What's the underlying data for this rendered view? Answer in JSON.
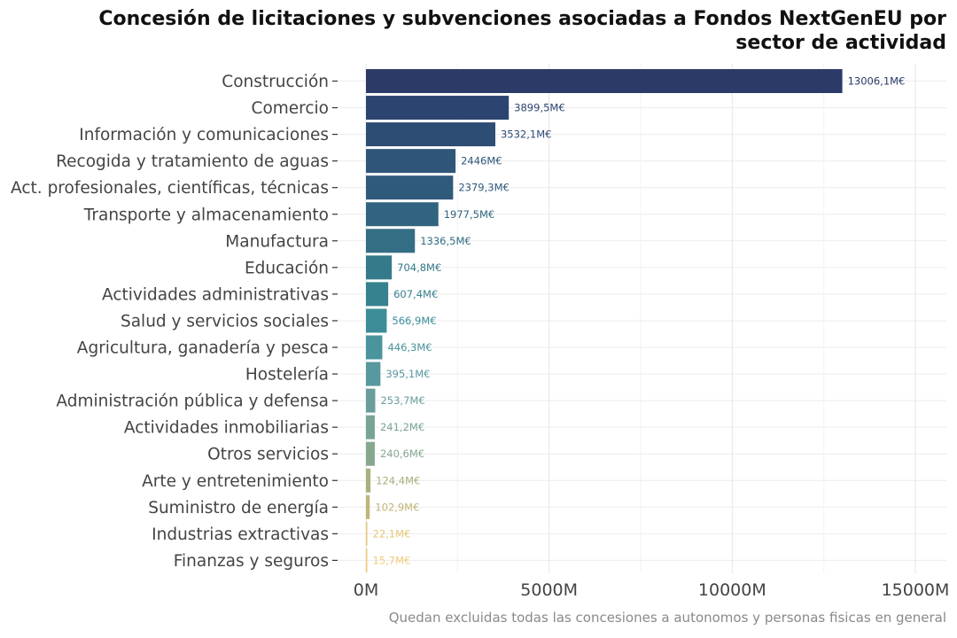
{
  "chart_data": {
    "type": "bar",
    "orientation": "horizontal",
    "title": "Concesión de licitaciones y subvenciones asociadas a Fondos NextGenEU por sector de actividad",
    "title_lines": [
      "Concesión de licitaciones y subvenciones asociadas a Fondos NextGenEU por",
      "sector de actividad"
    ],
    "caption": "Quedan excluidas todas las concesiones a autonomos y personas fisicas en general",
    "xlabel": "",
    "ylabel": "",
    "xlim": [
      0,
      15000
    ],
    "xticks": [
      0,
      5000,
      10000,
      15000
    ],
    "xtick_labels": [
      "0M",
      "5000M",
      "10000M",
      "15000M"
    ],
    "grid": true,
    "legend": "none",
    "categories": [
      "Construcción",
      "Comercio",
      "Información y comunicaciones",
      "Recogida y tratamiento de aguas",
      "Act. profesionales, científicas, técnicas",
      "Transporte y almacenamiento",
      "Manufactura",
      "Educación",
      "Actividades administrativas",
      "Salud y servicios sociales",
      "Agricultura, ganadería y pesca",
      "Hostelería",
      "Administración pública y defensa",
      "Actividades inmobiliarias",
      "Otros servicios",
      "Arte y entretenimiento",
      "Suministro de energía",
      "Industrias extractivas",
      "Finanzas y seguros"
    ],
    "values": [
      13006.1,
      3899.5,
      3532.1,
      2446,
      2379.3,
      1977.5,
      1336.5,
      704.8,
      607.4,
      566.9,
      446.3,
      395.1,
      253.7,
      241.2,
      240.6,
      124.4,
      102.9,
      22.1,
      15.7
    ],
    "value_labels": [
      "13006,1M€",
      "3899,5M€",
      "3532,1M€",
      "2446M€",
      "2379,3M€",
      "1977,5M€",
      "1336,5M€",
      "704,8M€",
      "607,4M€",
      "566,9M€",
      "446,3M€",
      "395,1M€",
      "253,7M€",
      "241,2M€",
      "240,6M€",
      "124,4M€",
      "102,9M€",
      "22,1M€",
      "15,7M€"
    ],
    "colors": [
      "#2b3a67",
      "#2c4570",
      "#2e4d75",
      "#2f5679",
      "#305a7c",
      "#31647f",
      "#336e85",
      "#357a8a",
      "#37828f",
      "#3c8d97",
      "#4a949c",
      "#57999f",
      "#6a9e9c",
      "#78a498",
      "#86a88f",
      "#a7b17e",
      "#c0b578",
      "#e7c775",
      "#f2cb7a"
    ]
  }
}
